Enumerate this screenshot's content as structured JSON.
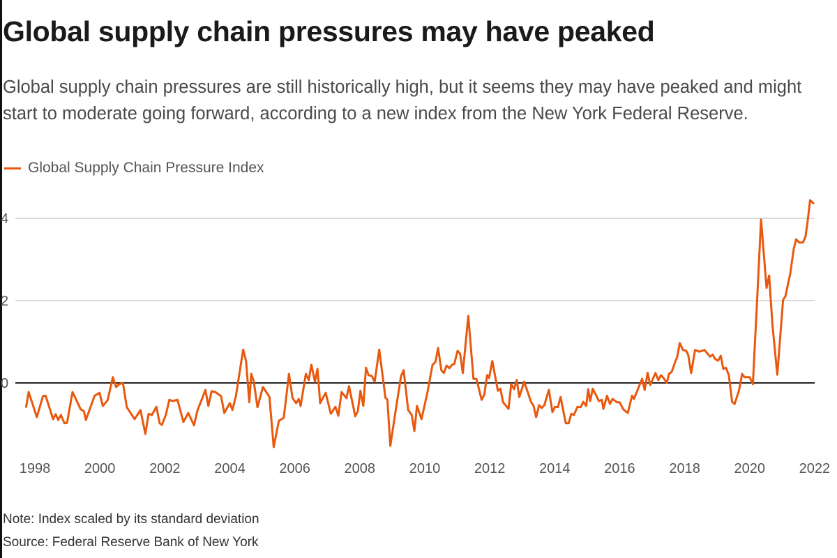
{
  "title": "Global supply chain pressures may have peaked",
  "subtitle": "Global supply chain pressures are still historically high, but it seems they may have peaked and might start to moderate going forward, according to a new index from the New York Federal Reserve.",
  "footer": {
    "note": "Note: Index scaled by its standard deviation",
    "source": "Source: Federal Reserve Bank of New York"
  },
  "colors": {
    "series": "#e8580e",
    "grid": "#cfcfcf",
    "zero": "#222222"
  },
  "chart_data": {
    "type": "line",
    "title": "Global supply chain pressures may have peaked",
    "xlabel": "",
    "ylabel": "",
    "xlim": [
      1998,
      2022
    ],
    "ylim": [
      -1.9,
      4.6
    ],
    "grid": true,
    "legend_placement": "top-left",
    "x_ticks": [
      "1998",
      "2000",
      "2002",
      "2004",
      "2006",
      "2008",
      "2010",
      "2012",
      "2014",
      "2016",
      "2018",
      "2020",
      "2022"
    ],
    "y_ticks": [
      "0",
      "2",
      "4"
    ],
    "series": [
      {
        "name": "Global Supply Chain Pressure Index",
        "x": [
          1997.73,
          1997.81,
          1998.06,
          1998.25,
          1998.33,
          1998.56,
          1998.64,
          1998.72,
          1998.8,
          1998.91,
          1998.99,
          1999.16,
          1999.41,
          1999.51,
          1999.57,
          1999.84,
          1999.99,
          2000.09,
          2000.24,
          2000.4,
          2000.5,
          2000.6,
          2000.71,
          2000.83,
          2001.07,
          2001.25,
          2001.4,
          2001.5,
          2001.6,
          2001.74,
          2001.84,
          2001.91,
          2002.03,
          2002.14,
          2002.24,
          2002.39,
          2002.57,
          2002.72,
          2002.9,
          2003.0,
          2003.25,
          2003.34,
          2003.44,
          2003.55,
          2003.73,
          2003.83,
          2004.0,
          2004.08,
          2004.19,
          2004.41,
          2004.5,
          2004.6,
          2004.66,
          2004.74,
          2004.85,
          2005.02,
          2005.22,
          2005.35,
          2005.51,
          2005.66,
          2005.82,
          2005.93,
          2006.04,
          2006.12,
          2006.18,
          2006.34,
          2006.43,
          2006.51,
          2006.62,
          2006.7,
          2006.78,
          2006.95,
          2007.11,
          2007.25,
          2007.34,
          2007.44,
          2007.59,
          2007.67,
          2007.86,
          2007.94,
          2008.02,
          2008.11,
          2008.19,
          2008.27,
          2008.37,
          2008.46,
          2008.6,
          2008.79,
          2008.85,
          2008.94,
          2009.14,
          2009.27,
          2009.35,
          2009.49,
          2009.6,
          2009.68,
          2009.76,
          2009.9,
          2010.08,
          2010.24,
          2010.33,
          2010.41,
          2010.51,
          2010.59,
          2010.67,
          2010.76,
          2010.84,
          2010.91,
          2011.01,
          2011.09,
          2011.17,
          2011.34,
          2011.5,
          2011.59,
          2011.75,
          2011.83,
          2011.92,
          2011.98,
          2012.08,
          2012.25,
          2012.33,
          2012.41,
          2012.58,
          2012.66,
          2012.75,
          2012.83,
          2012.91,
          2013.06,
          2013.27,
          2013.35,
          2013.43,
          2013.52,
          2013.6,
          2013.68,
          2013.82,
          2013.93,
          2014.01,
          2014.1,
          2014.18,
          2014.34,
          2014.43,
          2014.51,
          2014.59,
          2014.7,
          2014.8,
          2014.88,
          2014.97,
          2015.03,
          2015.09,
          2015.17,
          2015.28,
          2015.36,
          2015.45,
          2015.5,
          2015.61,
          2015.7,
          2015.78,
          2015.92,
          2016.0,
          2016.11,
          2016.25,
          2016.38,
          2016.44,
          2016.69,
          2016.77,
          2016.86,
          2016.94,
          2017.1,
          2017.19,
          2017.27,
          2017.35,
          2017.45,
          2017.52,
          2017.6,
          2017.72,
          2017.77,
          2017.85,
          2017.95,
          2018.05,
          2018.11,
          2018.2,
          2018.32,
          2018.45,
          2018.53,
          2018.61,
          2018.78,
          2018.86,
          2018.94,
          2019.03,
          2019.11,
          2019.19,
          2019.27,
          2019.36,
          2019.46,
          2019.54,
          2019.67,
          2019.77,
          2019.84,
          2020.0,
          2020.1,
          2020.23,
          2020.35,
          2020.52,
          2020.6,
          2020.7,
          2020.85,
          2021.03,
          2021.1,
          2021.25,
          2021.36,
          2021.43,
          2021.53,
          2021.64,
          2021.72,
          2021.78,
          2021.86,
          2021.97
        ],
        "values": [
          -0.59,
          -0.22,
          -0.83,
          -0.32,
          -0.31,
          -0.88,
          -0.76,
          -0.9,
          -0.78,
          -0.98,
          -0.97,
          -0.22,
          -0.64,
          -0.69,
          -0.9,
          -0.31,
          -0.24,
          -0.56,
          -0.42,
          0.14,
          -0.1,
          -0.03,
          0.0,
          -0.59,
          -0.88,
          -0.66,
          -1.24,
          -0.75,
          -0.78,
          -0.58,
          -0.98,
          -1.02,
          -0.78,
          -0.41,
          -0.44,
          -0.41,
          -0.95,
          -0.73,
          -1.03,
          -0.68,
          -0.17,
          -0.56,
          -0.2,
          -0.22,
          -0.32,
          -0.73,
          -0.49,
          -0.66,
          -0.31,
          0.81,
          0.53,
          -0.47,
          0.22,
          0.03,
          -0.59,
          -0.1,
          -0.34,
          -1.56,
          -0.92,
          -0.85,
          0.22,
          -0.37,
          -0.49,
          -0.39,
          -0.56,
          0.22,
          0.07,
          0.44,
          0.03,
          0.34,
          -0.49,
          -0.24,
          -0.75,
          -0.58,
          -0.8,
          -0.22,
          -0.37,
          -0.08,
          -0.81,
          -0.69,
          -0.19,
          -0.56,
          0.37,
          0.19,
          0.17,
          0.03,
          0.81,
          -0.36,
          -0.41,
          -1.53,
          -0.49,
          0.17,
          0.31,
          -0.66,
          -0.78,
          -1.17,
          -0.56,
          -0.88,
          -0.24,
          0.44,
          0.51,
          0.85,
          0.31,
          0.24,
          0.42,
          0.36,
          0.44,
          0.46,
          0.78,
          0.71,
          0.24,
          1.63,
          0.1,
          0.1,
          -0.41,
          -0.29,
          0.19,
          0.12,
          0.53,
          -0.19,
          -0.14,
          -0.47,
          -0.63,
          -0.03,
          -0.15,
          0.07,
          -0.34,
          0.03,
          -0.46,
          -0.56,
          -0.83,
          -0.54,
          -0.61,
          -0.54,
          -0.17,
          -0.71,
          -0.58,
          -0.59,
          -0.34,
          -0.98,
          -0.98,
          -0.75,
          -0.78,
          -0.58,
          -0.59,
          -0.46,
          -0.56,
          -0.15,
          -0.44,
          -0.14,
          -0.31,
          -0.44,
          -0.41,
          -0.63,
          -0.31,
          -0.51,
          -0.39,
          -0.47,
          -0.47,
          -0.64,
          -0.73,
          -0.31,
          -0.39,
          0.1,
          -0.17,
          0.25,
          -0.05,
          0.24,
          0.07,
          0.19,
          0.12,
          0.0,
          0.22,
          0.27,
          0.54,
          0.63,
          0.97,
          0.8,
          0.78,
          0.68,
          0.24,
          0.8,
          0.76,
          0.78,
          0.8,
          0.64,
          0.69,
          0.58,
          0.54,
          0.66,
          0.34,
          0.37,
          0.19,
          -0.46,
          -0.51,
          -0.19,
          0.22,
          0.14,
          0.14,
          -0.03,
          2.02,
          3.97,
          2.31,
          2.61,
          1.42,
          0.2,
          2.02,
          2.1,
          2.66,
          3.27,
          3.49,
          3.41,
          3.41,
          3.56,
          3.9,
          4.44,
          4.36
        ]
      }
    ]
  }
}
